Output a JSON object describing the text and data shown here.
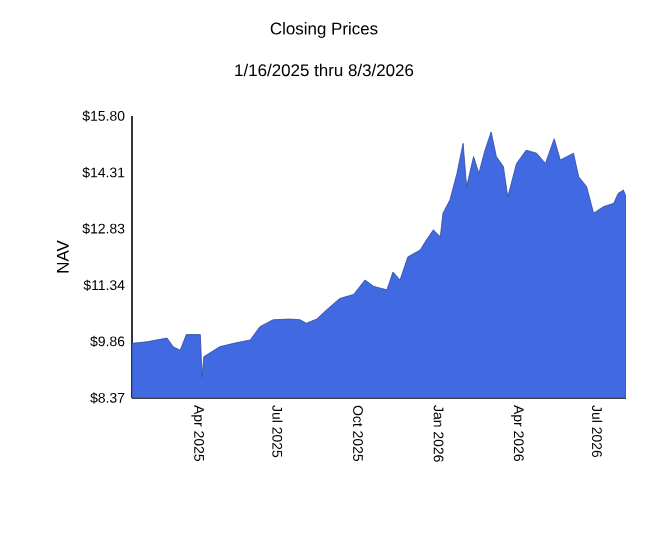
{
  "chart_data": {
    "type": "area",
    "title": "Closing Prices",
    "subtitle": "1/16/2025 thru 8/3/2026",
    "ylabel": "NAV",
    "color": "#4169e1",
    "x": [
      "2025-01-16",
      "2025-02-02",
      "2025-02-25",
      "2025-03-04",
      "2025-03-12",
      "2025-03-19",
      "2025-04-04",
      "2025-04-06",
      "2025-04-08",
      "2025-04-26",
      "2025-05-12",
      "2025-05-31",
      "2025-06-11",
      "2025-06-26",
      "2025-07-15",
      "2025-07-27",
      "2025-08-03",
      "2025-08-15",
      "2025-08-26",
      "2025-09-10",
      "2025-09-26",
      "2025-10-09",
      "2025-10-19",
      "2025-11-03",
      "2025-11-10",
      "2025-11-18",
      "2025-11-27",
      "2025-12-11",
      "2025-12-18",
      "2025-12-26",
      "2026-01-03",
      "2026-01-06",
      "2026-01-14",
      "2026-01-22",
      "2026-01-29",
      "2026-02-02",
      "2026-02-10",
      "2026-02-16",
      "2026-02-23",
      "2026-03-02",
      "2026-03-08",
      "2026-03-16",
      "2026-03-21",
      "2026-03-31",
      "2026-04-11",
      "2026-04-23",
      "2026-05-03",
      "2026-05-13",
      "2026-05-20",
      "2026-06-04",
      "2026-06-10",
      "2026-06-19",
      "2026-06-27",
      "2026-07-08",
      "2026-07-20",
      "2026-07-25",
      "2026-07-31",
      "2026-08-03"
    ],
    "values": [
      9.81,
      9.85,
      9.95,
      9.72,
      9.63,
      10.04,
      10.04,
      8.93,
      9.46,
      9.72,
      9.81,
      9.9,
      10.25,
      10.43,
      10.45,
      10.43,
      10.34,
      10.45,
      10.69,
      10.99,
      11.1,
      11.48,
      11.31,
      11.22,
      11.69,
      11.48,
      12.09,
      12.27,
      12.53,
      12.8,
      12.62,
      13.24,
      13.59,
      14.29,
      15.08,
      13.94,
      14.73,
      14.29,
      14.9,
      15.38,
      14.73,
      14.47,
      13.67,
      14.55,
      14.9,
      14.82,
      14.55,
      15.2,
      14.64,
      14.82,
      14.2,
      13.94,
      13.24,
      13.41,
      13.5,
      13.76,
      13.85,
      13.67
    ],
    "xlim": [
      "2025-01-16",
      "2026-08-03"
    ],
    "xticks": [
      {
        "value": "2025-04-01",
        "label": "Apr 2025"
      },
      {
        "value": "2025-07-01",
        "label": "Jul 2025"
      },
      {
        "value": "2025-10-01",
        "label": "Oct 2025"
      },
      {
        "value": "2026-01-01",
        "label": "Jan 2026"
      },
      {
        "value": "2026-04-01",
        "label": "Apr 2026"
      },
      {
        "value": "2026-07-01",
        "label": "Jul 2026"
      }
    ],
    "ylim": [
      8.37,
      15.8
    ],
    "yticks": [
      {
        "value": 8.37,
        "label": "$8.37"
      },
      {
        "value": 9.86,
        "label": "$9.86"
      },
      {
        "value": 11.34,
        "label": "$11.34"
      },
      {
        "value": 12.83,
        "label": "$12.83"
      },
      {
        "value": 14.31,
        "label": "$14.31"
      },
      {
        "value": 15.8,
        "label": "$15.80"
      }
    ]
  }
}
